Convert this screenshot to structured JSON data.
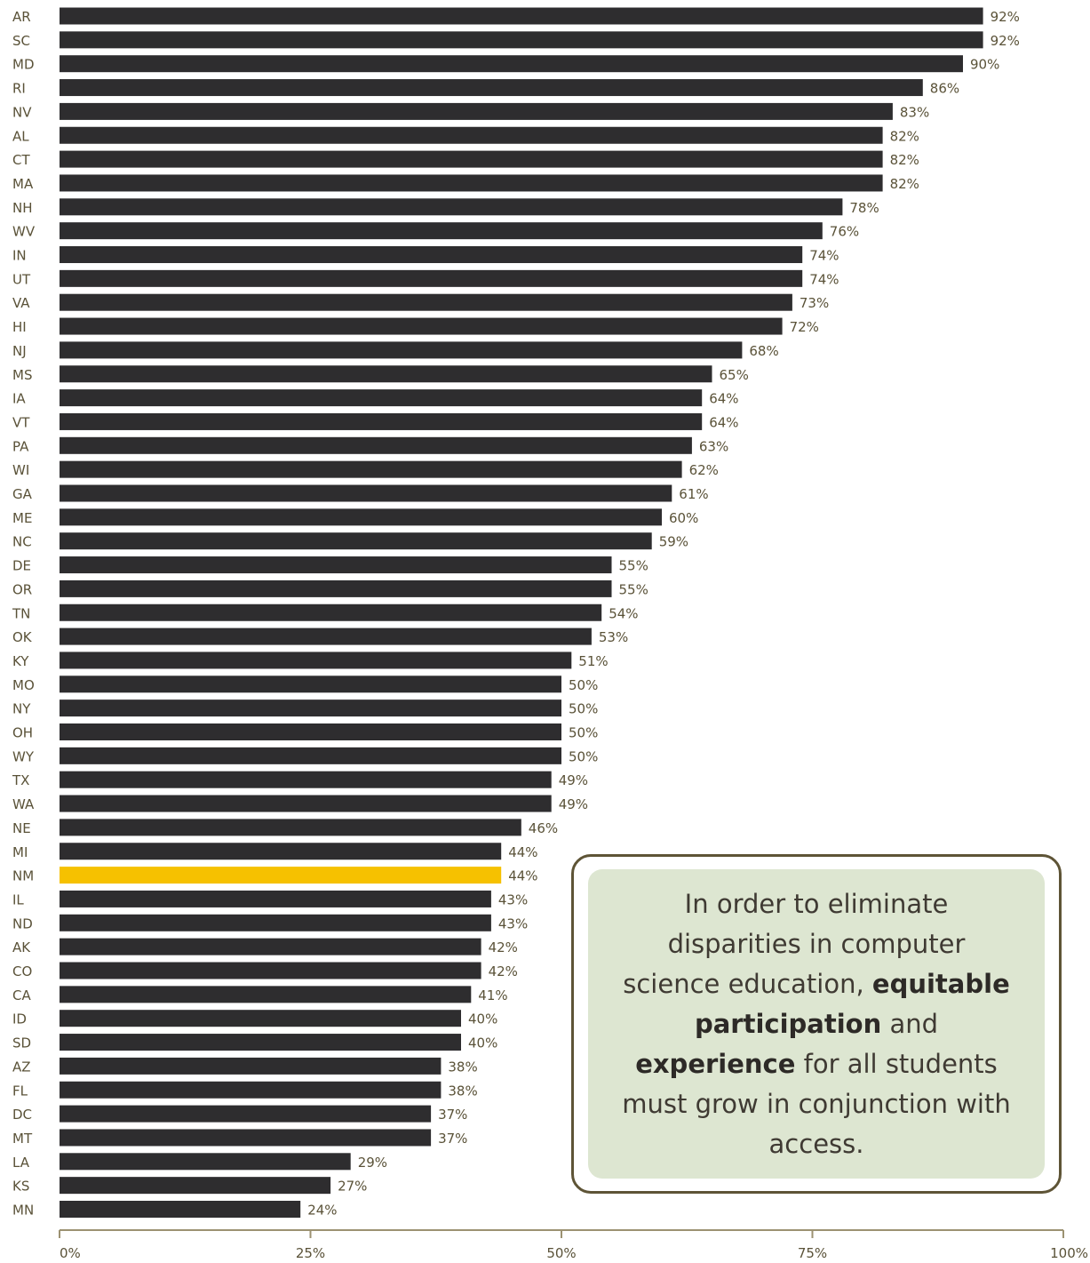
{
  "chart_data": {
    "type": "bar",
    "orientation": "horizontal",
    "categories": [
      "AR",
      "SC",
      "MD",
      "RI",
      "NV",
      "AL",
      "CT",
      "MA",
      "NH",
      "WV",
      "IN",
      "UT",
      "VA",
      "HI",
      "NJ",
      "MS",
      "IA",
      "VT",
      "PA",
      "WI",
      "GA",
      "ME",
      "NC",
      "DE",
      "OR",
      "TN",
      "OK",
      "KY",
      "MO",
      "NY",
      "OH",
      "WY",
      "TX",
      "WA",
      "NE",
      "MI",
      "NM",
      "IL",
      "ND",
      "AK",
      "CO",
      "CA",
      "ID",
      "SD",
      "AZ",
      "FL",
      "DC",
      "MT",
      "LA",
      "KS",
      "MN"
    ],
    "values": [
      92,
      92,
      90,
      86,
      83,
      82,
      82,
      82,
      78,
      76,
      74,
      74,
      73,
      72,
      68,
      65,
      64,
      64,
      63,
      62,
      61,
      60,
      59,
      55,
      55,
      54,
      53,
      51,
      50,
      50,
      50,
      50,
      49,
      49,
      46,
      44,
      44,
      43,
      43,
      42,
      42,
      41,
      40,
      40,
      38,
      38,
      37,
      37,
      29,
      27,
      24
    ],
    "value_labels": [
      "92%",
      "92%",
      "90%",
      "86%",
      "83%",
      "82%",
      "82%",
      "82%",
      "78%",
      "76%",
      "74%",
      "74%",
      "73%",
      "72%",
      "68%",
      "65%",
      "64%",
      "64%",
      "63%",
      "62%",
      "61%",
      "60%",
      "59%",
      "55%",
      "55%",
      "54%",
      "53%",
      "51%",
      "50%",
      "50%",
      "50%",
      "50%",
      "49%",
      "49%",
      "46%",
      "44%",
      "44%",
      "43%",
      "43%",
      "42%",
      "42%",
      "41%",
      "40%",
      "40%",
      "38%",
      "38%",
      "37%",
      "37%",
      "29%",
      "27%",
      "24%"
    ],
    "highlight": "NM",
    "xlim": [
      0,
      100
    ],
    "xticks": [
      "0%",
      "25%",
      "50%",
      "75%",
      "100%"
    ],
    "xtick_values": [
      0,
      25,
      50,
      75,
      100
    ],
    "grid": false,
    "legend": "none",
    "title": "",
    "xlabel": "",
    "ylabel": ""
  },
  "colors": {
    "bar": "#2e2d2f",
    "highlight": "#f6c100",
    "text": "#5a5238",
    "axis": "#9c9272",
    "callout_border": "#5e5436",
    "callout_fill": "#dde6d1"
  },
  "callout": {
    "text_1": "In order to eliminate disparities in computer science education,",
    "bold_1": "equitable participation",
    "text_2": "and",
    "bold_2": "experience",
    "text_3": "for all students must grow in conjunction with access."
  }
}
